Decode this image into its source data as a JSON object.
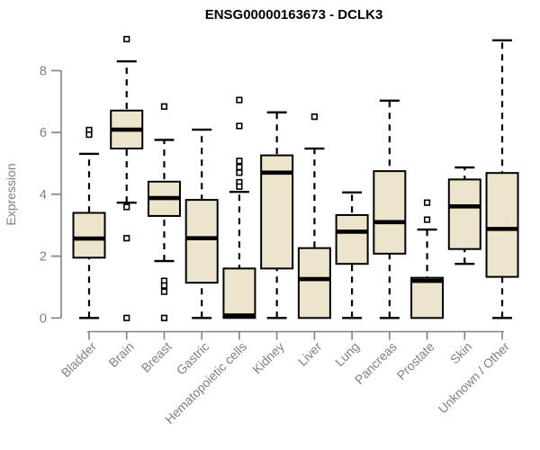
{
  "header": {
    "title": "ENSG00000163673 - DCLK3"
  },
  "chart_data": {
    "type": "boxplot",
    "title": "ENSG00000163673 - DCLK3",
    "ylabel": "Expression",
    "xlabel": "",
    "yticks": [
      0,
      2,
      4,
      6,
      8
    ],
    "ylim": [
      0,
      9.2
    ],
    "grid": false,
    "legend": false,
    "colors": {
      "box_fill": "#ece5cb",
      "box_stroke": "#000000",
      "median": "#000000",
      "whisker": "#000000",
      "axis": "#808080",
      "tick_text": "#808080",
      "title_text": "#000000",
      "background": "#ffffff"
    },
    "categories": [
      "Bladder",
      "Brain",
      "Breast",
      "Gastric",
      "Hematopoietic cells",
      "Kidney",
      "Liver",
      "Lung",
      "Pancreas",
      "Prostate",
      "Skin",
      "Unknown / Other"
    ],
    "series": [
      {
        "category": "Bladder",
        "whisker_low": 0,
        "q1": 1.95,
        "median": 2.57,
        "q3": 3.4,
        "whisker_high": 5.31,
        "outliers": [
          6.08,
          5.93
        ]
      },
      {
        "category": "Brain",
        "whisker_low": 3.73,
        "q1": 5.48,
        "median": 6.09,
        "q3": 6.71,
        "whisker_high": 8.3,
        "outliers": [
          9.02,
          3.59,
          2.58,
          0
        ]
      },
      {
        "category": "Breast",
        "whisker_low": 1.84,
        "q1": 3.3,
        "median": 3.88,
        "q3": 4.41,
        "whisker_high": 5.76,
        "outliers": [
          6.84,
          1.2,
          1.05,
          0.85,
          0
        ]
      },
      {
        "category": "Gastric",
        "whisker_low": 0,
        "q1": 1.14,
        "median": 2.58,
        "q3": 3.82,
        "whisker_high": 6.09,
        "outliers": []
      },
      {
        "category": "Hematopoietic cells",
        "whisker_low": 0,
        "q1": 0,
        "median": 0.08,
        "q3": 1.6,
        "whisker_high": 4.08,
        "outliers": [
          7.05,
          6.21,
          5.08,
          4.88,
          4.7,
          4.39,
          4.25
        ]
      },
      {
        "category": "Kidney",
        "whisker_low": 0,
        "q1": 1.6,
        "median": 4.7,
        "q3": 5.26,
        "whisker_high": 6.65,
        "outliers": []
      },
      {
        "category": "Liver",
        "whisker_low": 0,
        "q1": 0,
        "median": 1.26,
        "q3": 2.26,
        "whisker_high": 5.48,
        "outliers": [
          6.51
        ]
      },
      {
        "category": "Lung",
        "whisker_low": 0,
        "q1": 1.75,
        "median": 2.79,
        "q3": 3.33,
        "whisker_high": 4.06,
        "outliers": []
      },
      {
        "category": "Pancreas",
        "whisker_low": 0,
        "q1": 2.08,
        "median": 3.1,
        "q3": 4.75,
        "whisker_high": 7.03,
        "outliers": []
      },
      {
        "category": "Prostate",
        "whisker_low": 0,
        "q1": 0,
        "median": 1.2,
        "q3": 1.3,
        "whisker_high": 2.86,
        "outliers": [
          3.73,
          3.18
        ]
      },
      {
        "category": "Skin",
        "whisker_low": 1.75,
        "q1": 2.23,
        "median": 3.61,
        "q3": 4.48,
        "whisker_high": 4.87,
        "outliers": []
      },
      {
        "category": "Unknown / Other",
        "whisker_low": 0,
        "q1": 1.33,
        "median": 2.88,
        "q3": 4.69,
        "whisker_high": 8.98,
        "outliers": []
      }
    ]
  }
}
